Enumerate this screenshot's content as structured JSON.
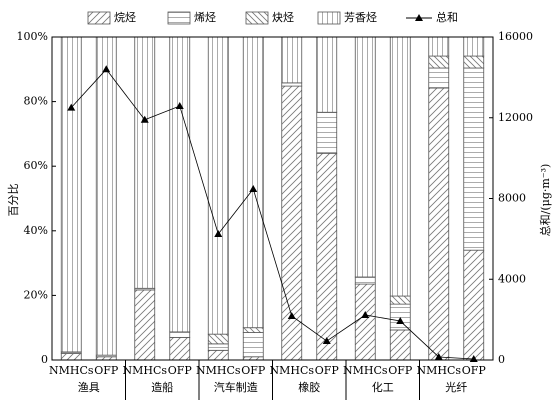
{
  "chart_data": {
    "type": "stacked-bar-line",
    "ylabel": "百分比",
    "y2label": "总和/(μg·m⁻³)",
    "categories": [
      "NMHCs",
      "OFP",
      "NMHCs",
      "OFP",
      "NMHCs",
      "OFP",
      "NMHCs",
      "OFP",
      "NMHCs",
      "OFP",
      "NMHCs",
      "OFP"
    ],
    "groups": [
      "渔具",
      "造船",
      "汽车制造",
      "橡胶",
      "化工",
      "光纤"
    ],
    "series": [
      {
        "name": "烷烃",
        "color": "#555555",
        "pattern": "diagonal",
        "values": [
          2,
          1,
          21.7,
          7,
          3,
          1,
          84.8,
          64,
          23.5,
          9.3,
          84.2,
          34
        ]
      },
      {
        "name": "烯烃",
        "color": "#555555",
        "pattern": "horizontal",
        "values": [
          0.5,
          0.5,
          0.5,
          1.7,
          2,
          7.5,
          1,
          12.7,
          2.2,
          8,
          6.2,
          56.4
        ]
      },
      {
        "name": "炔烃",
        "color": "#555555",
        "pattern": "antidiagonal",
        "values": [
          0,
          0,
          0,
          0,
          3,
          1.5,
          0,
          0,
          0,
          2.5,
          3.7,
          3.7
        ]
      },
      {
        "name": "芳香烃",
        "color": "#555555",
        "pattern": "vertical",
        "values": [
          97.5,
          98.5,
          77.8,
          91.3,
          92,
          90,
          14.2,
          23.3,
          74.3,
          80.2,
          5.9,
          5.9
        ]
      },
      {
        "name": "总和",
        "color": "#000000",
        "axis": "y2",
        "marker": "triangle",
        "values": [
          12500,
          14400,
          11900,
          12580,
          6240,
          8470,
          2180,
          940,
          2230,
          1930,
          150,
          50
        ]
      }
    ],
    "ylim": [
      0,
      100
    ],
    "yticks": [
      0,
      {
        "value": 20,
        "label": "20%"
      },
      {
        "value": 40,
        "label": "40%"
      },
      {
        "value": 60,
        "label": "60%"
      },
      {
        "value": 80,
        "label": "80%"
      },
      {
        "value": 100,
        "label": "100%"
      }
    ],
    "y2lim": [
      0,
      16000
    ],
    "y2ticks": [
      0,
      4000,
      8000,
      12000,
      16000
    ],
    "legend": "top"
  }
}
